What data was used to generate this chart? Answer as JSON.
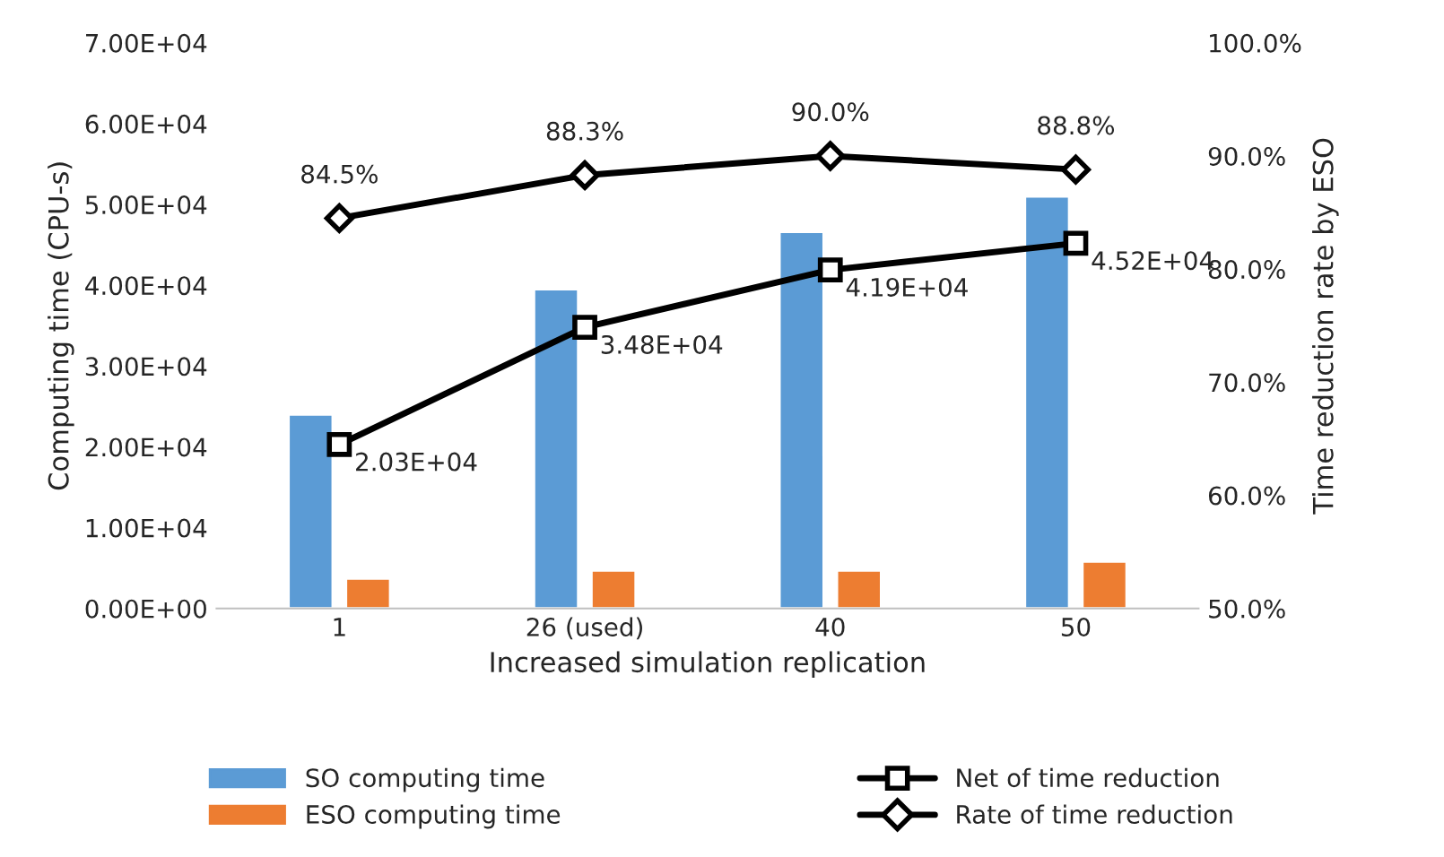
{
  "chart_data": {
    "type": "bar",
    "xlabel": "Increased simulation replication",
    "ylabel": "Computing time (CPU-s)",
    "y2label": "Time reduction rate by ESO",
    "categories": [
      "1",
      "26 (used)",
      "40",
      "50"
    ],
    "series": [
      {
        "name": "SO computing time",
        "color": "#5b9bd5",
        "values": [
          24000,
          39500,
          46600,
          51000
        ]
      },
      {
        "name": "ESO computing time",
        "color": "#ed7d31",
        "values": [
          3700,
          4700,
          4700,
          5800
        ]
      },
      {
        "name": "Net of time reduction",
        "type": "line",
        "color": "#000000",
        "marker": "square",
        "values": [
          20300,
          34800,
          41900,
          45200
        ],
        "value_labels": [
          "2.03E+04",
          "3.48E+04",
          "4.19E+04",
          "4.52E+04"
        ]
      },
      {
        "name": "Rate of time reduction",
        "type": "line",
        "axis": "y2",
        "color": "#000000",
        "marker": "diamond",
        "values": [
          84.5,
          88.3,
          90.0,
          88.8
        ],
        "value_labels": [
          "84.5%",
          "88.3%",
          "90.0%",
          "88.8%"
        ]
      }
    ],
    "ylim": [
      0,
      70000
    ],
    "yticks": [
      {
        "value": 0,
        "label": "0.00E+00"
      },
      {
        "value": 10000,
        "label": "1.00E+04"
      },
      {
        "value": 20000,
        "label": "2.00E+04"
      },
      {
        "value": 30000,
        "label": "3.00E+04"
      },
      {
        "value": 40000,
        "label": "4.00E+04"
      },
      {
        "value": 50000,
        "label": "5.00E+04"
      },
      {
        "value": 60000,
        "label": "6.00E+04"
      },
      {
        "value": 70000,
        "label": "7.00E+04"
      }
    ],
    "y2lim": [
      50,
      100
    ],
    "y2ticks": [
      {
        "value": 50,
        "label": "50.0%"
      },
      {
        "value": 60,
        "label": "60.0%"
      },
      {
        "value": 70,
        "label": "70.0%"
      },
      {
        "value": 80,
        "label": "80.0%"
      },
      {
        "value": 90,
        "label": "90.0%"
      },
      {
        "value": 100,
        "label": "100.0%"
      }
    ],
    "grid": false,
    "legend": "bottom"
  }
}
